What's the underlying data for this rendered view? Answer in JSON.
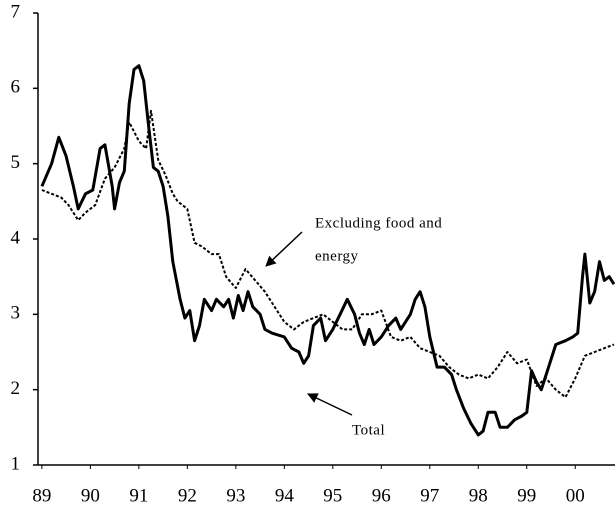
{
  "chart_data": {
    "type": "line",
    "xlim": [
      1988.92,
      2000.82
    ],
    "xticks": [
      {
        "value": 1989,
        "label": "89"
      },
      {
        "value": 1990,
        "label": "90"
      },
      {
        "value": 1991,
        "label": "91"
      },
      {
        "value": 1992,
        "label": "92"
      },
      {
        "value": 1993,
        "label": "93"
      },
      {
        "value": 1994,
        "label": "94"
      },
      {
        "value": 1995,
        "label": "95"
      },
      {
        "value": 1996,
        "label": "96"
      },
      {
        "value": 1997,
        "label": "97"
      },
      {
        "value": 1998,
        "label": "98"
      },
      {
        "value": 1999,
        "label": "99"
      },
      {
        "value": 2000,
        "label": "00"
      }
    ],
    "ylim": [
      1,
      7
    ],
    "yticks": [
      1,
      2,
      3,
      4,
      5,
      6,
      7
    ],
    "annotations": [
      {
        "lines": [
          "Excluding food and",
          "energy"
        ]
      },
      {
        "lines": [
          "Total"
        ]
      }
    ],
    "series": [
      {
        "name": "Total",
        "color": "#000000",
        "style": "solid",
        "x": [
          1989.0,
          1989.2,
          1989.35,
          1989.5,
          1989.65,
          1989.75,
          1989.9,
          1990.05,
          1990.2,
          1990.3,
          1990.45,
          1990.5,
          1990.6,
          1990.7,
          1990.8,
          1990.9,
          1991.0,
          1991.1,
          1991.2,
          1991.3,
          1991.4,
          1991.5,
          1991.6,
          1991.7,
          1991.85,
          1991.95,
          1992.05,
          1992.15,
          1992.25,
          1992.35,
          1992.5,
          1992.6,
          1992.75,
          1992.85,
          1992.95,
          1993.05,
          1993.15,
          1993.25,
          1993.35,
          1993.5,
          1993.6,
          1993.75,
          1994.0,
          1994.15,
          1994.3,
          1994.4,
          1994.5,
          1994.6,
          1994.75,
          1994.85,
          1995.0,
          1995.15,
          1995.3,
          1995.45,
          1995.55,
          1995.65,
          1995.75,
          1995.85,
          1996.0,
          1996.15,
          1996.3,
          1996.4,
          1996.5,
          1996.6,
          1996.7,
          1996.8,
          1996.9,
          1997.0,
          1997.15,
          1997.3,
          1997.45,
          1997.55,
          1997.7,
          1997.85,
          1998.0,
          1998.1,
          1998.2,
          1998.35,
          1998.45,
          1998.6,
          1998.75,
          1998.9,
          1999.0,
          1999.1,
          1999.2,
          1999.3,
          1999.45,
          1999.6,
          1999.8,
          1999.95,
          2000.05,
          2000.15,
          2000.2,
          2000.3,
          2000.4,
          2000.5,
          2000.6,
          2000.7,
          2000.8
        ],
        "values": [
          4.7,
          5.0,
          5.35,
          5.1,
          4.7,
          4.4,
          4.6,
          4.65,
          5.2,
          5.25,
          4.7,
          4.4,
          4.75,
          4.9,
          5.8,
          6.25,
          6.3,
          6.1,
          5.5,
          4.95,
          4.9,
          4.7,
          4.3,
          3.7,
          3.2,
          2.95,
          3.05,
          2.65,
          2.85,
          3.2,
          3.05,
          3.2,
          3.1,
          3.2,
          2.95,
          3.25,
          3.05,
          3.3,
          3.1,
          3.0,
          2.8,
          2.75,
          2.7,
          2.55,
          2.5,
          2.35,
          2.45,
          2.85,
          2.95,
          2.65,
          2.8,
          3.0,
          3.2,
          3.0,
          2.75,
          2.6,
          2.8,
          2.6,
          2.7,
          2.85,
          2.95,
          2.8,
          2.9,
          3.0,
          3.2,
          3.3,
          3.1,
          2.7,
          2.3,
          2.3,
          2.2,
          2.0,
          1.75,
          1.55,
          1.4,
          1.45,
          1.7,
          1.7,
          1.5,
          1.5,
          1.6,
          1.65,
          1.7,
          2.25,
          2.1,
          2.0,
          2.3,
          2.6,
          2.65,
          2.7,
          2.75,
          3.5,
          3.8,
          3.15,
          3.3,
          3.7,
          3.45,
          3.5,
          3.4
        ]
      },
      {
        "name": "Excluding food and energy",
        "color": "#000000",
        "style": "dashed",
        "x": [
          1989.0,
          1989.2,
          1989.4,
          1989.55,
          1989.75,
          1989.9,
          1990.1,
          1990.3,
          1990.5,
          1990.7,
          1990.8,
          1991.0,
          1991.15,
          1991.25,
          1991.4,
          1991.55,
          1991.7,
          1991.8,
          1992.0,
          1992.15,
          1992.3,
          1992.5,
          1992.65,
          1992.8,
          1993.0,
          1993.2,
          1993.4,
          1993.6,
          1993.8,
          1994.0,
          1994.2,
          1994.4,
          1994.6,
          1994.8,
          1995.0,
          1995.2,
          1995.4,
          1995.6,
          1995.8,
          1996.0,
          1996.2,
          1996.4,
          1996.6,
          1996.8,
          1997.0,
          1997.2,
          1997.4,
          1997.6,
          1997.8,
          1998.0,
          1998.2,
          1998.4,
          1998.6,
          1998.8,
          1999.0,
          1999.2,
          1999.4,
          1999.6,
          1999.8,
          2000.0,
          2000.2,
          2000.4,
          2000.6,
          2000.8
        ],
        "values": [
          4.65,
          4.6,
          4.55,
          4.45,
          4.25,
          4.35,
          4.45,
          4.8,
          4.95,
          5.2,
          5.55,
          5.3,
          5.2,
          5.7,
          5.05,
          4.85,
          4.6,
          4.5,
          4.4,
          3.95,
          3.9,
          3.8,
          3.8,
          3.5,
          3.35,
          3.6,
          3.45,
          3.3,
          3.1,
          2.9,
          2.8,
          2.9,
          2.95,
          3.0,
          2.9,
          2.8,
          2.8,
          3.0,
          3.0,
          3.05,
          2.7,
          2.65,
          2.7,
          2.55,
          2.5,
          2.45,
          2.3,
          2.2,
          2.15,
          2.2,
          2.15,
          2.3,
          2.5,
          2.35,
          2.4,
          2.05,
          2.15,
          2.0,
          1.9,
          2.15,
          2.45,
          2.5,
          2.55,
          2.6
        ]
      }
    ]
  }
}
